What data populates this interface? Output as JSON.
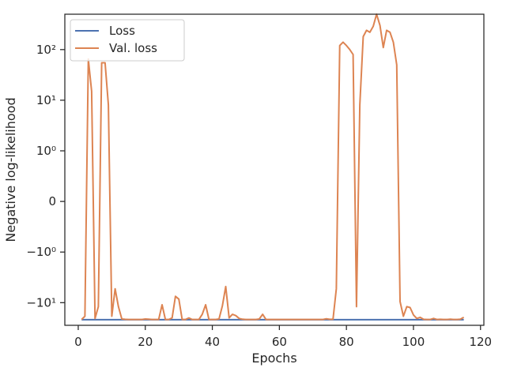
{
  "chart_data": {
    "type": "line",
    "title": "",
    "xlabel": "Epochs",
    "ylabel": "Negative log-likelihood",
    "yscale": "symlog",
    "xlim": [
      -4,
      121
    ],
    "ylim": [
      -28,
      500
    ],
    "x_ticks": [
      0,
      20,
      40,
      60,
      80,
      100,
      120
    ],
    "y_ticks": [
      {
        "value": -10,
        "label": "−10¹"
      },
      {
        "value": -1,
        "label": "−10⁰"
      },
      {
        "value": 0,
        "label": "0"
      },
      {
        "value": 1,
        "label": "10⁰"
      },
      {
        "value": 10,
        "label": "10¹"
      },
      {
        "value": 100,
        "label": "10²"
      }
    ],
    "grid": false,
    "legend": {
      "position": "upper-left"
    },
    "series": [
      {
        "name": "Loss",
        "color": "#4c72b0",
        "x": [
          1,
          115
        ],
        "y": [
          -21.7,
          -21.7
        ]
      },
      {
        "name": "Val. loss",
        "color": "#dd8452",
        "x": [
          1,
          2,
          3,
          4,
          5,
          6,
          7,
          8,
          9,
          10,
          11,
          12,
          13,
          14,
          15,
          16,
          17,
          18,
          19,
          20,
          21,
          22,
          23,
          24,
          25,
          26,
          27,
          28,
          29,
          30,
          31,
          32,
          33,
          34,
          35,
          36,
          37,
          38,
          39,
          40,
          41,
          42,
          43,
          44,
          45,
          46,
          47,
          48,
          49,
          50,
          51,
          52,
          53,
          54,
          55,
          56,
          57,
          58,
          59,
          60,
          61,
          62,
          63,
          64,
          65,
          66,
          67,
          68,
          69,
          70,
          71,
          72,
          73,
          74,
          75,
          76,
          77,
          78,
          79,
          80,
          81,
          82,
          83,
          84,
          85,
          86,
          87,
          88,
          89,
          90,
          91,
          92,
          93,
          94,
          95,
          96,
          97,
          98,
          99,
          100,
          101,
          102,
          103,
          104,
          105,
          106,
          107,
          108,
          109,
          110,
          111,
          112,
          113,
          114,
          115
        ],
        "y": [
          -21.5,
          -18.5,
          65,
          15,
          -20.5,
          -12,
          55,
          55,
          8,
          -18.5,
          -5.3,
          -12,
          -21,
          -21.3,
          -21.5,
          -21.5,
          -21.5,
          -21.5,
          -21.5,
          -21,
          -21.2,
          -21.5,
          -21.5,
          -21.5,
          -11,
          -21.5,
          -21.5,
          -20,
          -7.5,
          -8.5,
          -21.5,
          -21.5,
          -20,
          -21.5,
          -21.5,
          -21.5,
          -17,
          -11,
          -21.5,
          -21.5,
          -21.5,
          -21,
          -11.5,
          -4.8,
          -20,
          -17,
          -18,
          -20.5,
          -21.2,
          -21.5,
          -21.5,
          -21.5,
          -21.5,
          -21,
          -17,
          -21.5,
          -21.5,
          -21.5,
          -21.5,
          -21.5,
          -21.5,
          -21.5,
          -21.5,
          -21.5,
          -21.5,
          -21.5,
          -21.5,
          -21.5,
          -21.5,
          -21.5,
          -21.5,
          -21.5,
          -21.5,
          -20.8,
          -21.3,
          -21.3,
          -5.3,
          120,
          140,
          120,
          100,
          80,
          -12,
          8,
          180,
          240,
          220,
          290,
          500,
          300,
          110,
          240,
          220,
          140,
          50,
          -9.5,
          -18.5,
          -12,
          -12.5,
          -17.5,
          -20.5,
          -19.5,
          -21.3,
          -21.5,
          -21.5,
          -20.5,
          -21.5,
          -21.3,
          -21.5,
          -21.5,
          -21.2,
          -21.5,
          -21.5,
          -21.2,
          -19.5
        ]
      }
    ]
  }
}
